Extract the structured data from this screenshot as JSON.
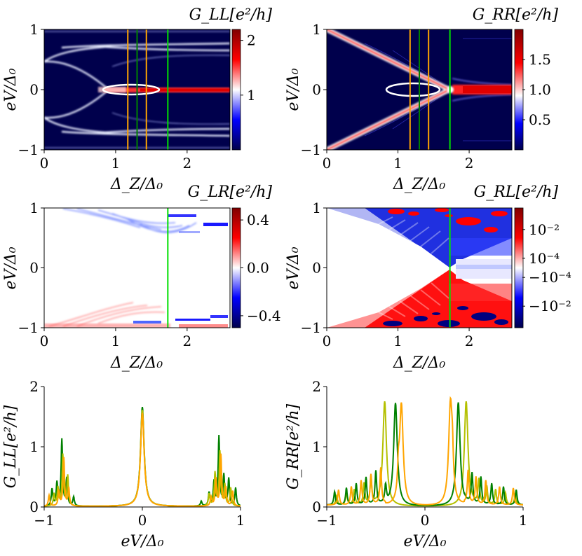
{
  "colors": {
    "seismic_dark_blue": "#00004c",
    "seismic_blue": "#0000ff",
    "seismic_white": "#ffffff",
    "seismic_red": "#ff0000",
    "seismic_dark_red": "#800000",
    "orange": "#ffa500",
    "dark_green": "#008000",
    "yellow_green": "#b4c000",
    "bright_green": "#00e000",
    "ellipse": "#ffffff"
  },
  "chart_data": [
    {
      "id": "GLL_map",
      "type": "heatmap",
      "title": "G_LL[e²/h]",
      "xlabel": "Δ_Z/Δ₀",
      "ylabel": "eV/Δ₀",
      "xlim": [
        0,
        2.6
      ],
      "ylim": [
        -1,
        1
      ],
      "x_ticks": [
        "0",
        "1",
        "2"
      ],
      "y_ticks": [
        "−1",
        "0",
        "1"
      ],
      "colorbar": {
        "range": [
          0,
          2.2
        ],
        "ticks": [
          "1",
          "2"
        ],
        "tick_values": [
          1,
          2
        ],
        "scale": "linear",
        "colormap": "seismic"
      },
      "vertical_lines": [
        {
          "x": 1.17,
          "color": "orange"
        },
        {
          "x": 1.3,
          "color": "dark_green"
        },
        {
          "x": 1.43,
          "color": "orange"
        },
        {
          "x": 1.73,
          "color": "bright_green"
        }
      ],
      "ellipse": {
        "cx": 1.23,
        "cy": 0.0,
        "rx": 0.4,
        "ry": 0.08
      }
    },
    {
      "id": "GRR_map",
      "type": "heatmap",
      "title": "G_RR[e²/h]",
      "xlabel": "Δ_Z/Δ₀",
      "ylabel": "eV/Δ₀",
      "xlim": [
        0,
        2.6
      ],
      "ylim": [
        -1,
        1
      ],
      "x_ticks": [
        "0",
        "1",
        "2"
      ],
      "y_ticks": [
        "−1",
        "0",
        "1"
      ],
      "colorbar": {
        "range": [
          0,
          2.0
        ],
        "ticks": [
          "0.5",
          "1.0",
          "1.5"
        ],
        "tick_values": [
          0.5,
          1.0,
          1.5
        ],
        "scale": "linear",
        "colormap": "seismic"
      },
      "vertical_lines": [
        {
          "x": 1.17,
          "color": "orange"
        },
        {
          "x": 1.3,
          "color": "dark_green"
        },
        {
          "x": 1.43,
          "color": "orange"
        },
        {
          "x": 1.73,
          "color": "bright_green"
        }
      ],
      "ellipse": {
        "cx": 1.23,
        "cy": 0.0,
        "rx": 0.38,
        "ry": 0.1
      }
    },
    {
      "id": "GLR_map",
      "type": "heatmap",
      "title": "G_LR[e²/h]",
      "xlabel": "Δ_Z/Δ₀",
      "ylabel": "eV/Δ₀",
      "xlim": [
        0,
        2.6
      ],
      "ylim": [
        -1,
        1
      ],
      "x_ticks": [
        "0",
        "1",
        "2"
      ],
      "y_ticks": [
        "−1",
        "0",
        "1"
      ],
      "colorbar": {
        "range": [
          -0.5,
          0.5
        ],
        "ticks": [
          "0.4",
          "0.0",
          "−0.4"
        ],
        "tick_values": [
          0.4,
          0.0,
          -0.4
        ],
        "scale": "linear",
        "colormap": "seismic"
      },
      "vertical_lines": [
        {
          "x": 1.73,
          "color": "bright_green"
        }
      ]
    },
    {
      "id": "GRL_map",
      "type": "heatmap",
      "title": "G_RL[e²/h]",
      "xlabel": "Δ_Z/Δ₀",
      "ylabel": "eV/Δ₀",
      "xlim": [
        0,
        2.6
      ],
      "ylim": [
        -1,
        1
      ],
      "x_ticks": [
        "0",
        "1",
        "2"
      ],
      "y_ticks": [
        "−1",
        "0",
        "1"
      ],
      "colorbar": {
        "scale": "symlog",
        "colormap": "seismic",
        "ticks": [
          "10⁻²",
          "10⁻⁴",
          "−10⁻⁴",
          "−10⁻²"
        ],
        "tick_positions": [
          0.82,
          0.58,
          0.42,
          0.18
        ]
      },
      "vertical_lines": [
        {
          "x": 1.73,
          "color": "bright_green"
        }
      ]
    },
    {
      "id": "GLL_cuts",
      "type": "line",
      "xlabel": "eV/Δ₀",
      "ylabel": "G_LL[e²/h]",
      "xlim": [
        -1,
        1
      ],
      "ylim": [
        0,
        2
      ],
      "x_ticks": [
        "−1",
        "0",
        "1"
      ],
      "y_ticks": [
        "0",
        "1",
        "2"
      ],
      "series": [
        {
          "color": "dark_green",
          "peak_center": 0.0,
          "peak_height": 1.65,
          "side_peaks": [
            [
              -0.82,
              1.1
            ],
            [
              -0.87,
              0.38
            ],
            [
              -0.92,
              0.28
            ],
            [
              -0.77,
              0.45
            ],
            [
              -0.7,
              0.15
            ],
            [
              0.78,
              1.15
            ],
            [
              0.83,
              0.5
            ],
            [
              0.88,
              0.45
            ],
            [
              0.73,
              0.4
            ],
            [
              0.68,
              0.22
            ],
            [
              0.95,
              0.3
            ],
            [
              0.6,
              0.08
            ]
          ]
        },
        {
          "color": "yellow_green",
          "peak_center": 0.0,
          "peak_height": 1.6,
          "side_peaks": [
            [
              -0.81,
              0.85
            ],
            [
              -0.86,
              0.3
            ],
            [
              -0.76,
              0.5
            ],
            [
              -0.9,
              0.2
            ],
            [
              0.79,
              0.9
            ],
            [
              0.74,
              0.55
            ],
            [
              0.84,
              0.35
            ],
            [
              0.9,
              0.3
            ],
            [
              0.68,
              0.2
            ]
          ]
        },
        {
          "color": "orange",
          "peak_center": 0.0,
          "peak_height": 1.55,
          "side_peaks": [
            [
              -0.8,
              0.8
            ],
            [
              -0.75,
              0.3
            ],
            [
              -0.85,
              0.25
            ],
            [
              -0.95,
              0.18
            ],
            [
              0.8,
              0.85
            ],
            [
              0.75,
              0.45
            ],
            [
              0.85,
              0.3
            ],
            [
              0.92,
              0.25
            ],
            [
              0.7,
              0.15
            ]
          ]
        }
      ]
    },
    {
      "id": "GRR_cuts",
      "type": "line",
      "xlabel": "eV/Δ₀",
      "ylabel": "G_RR[e²/h]",
      "xlim": [
        -1,
        1
      ],
      "ylim": [
        0,
        2
      ],
      "x_ticks": [
        "−1",
        "0",
        "1"
      ],
      "y_ticks": [
        "0",
        "1",
        "2"
      ],
      "series": [
        {
          "color": "yellow_green",
          "peaks": [
            [
              -0.41,
              1.72
            ],
            [
              0.42,
              1.72
            ],
            [
              -0.55,
              0.45
            ],
            [
              -0.62,
              0.35
            ],
            [
              0.55,
              0.4
            ],
            [
              0.63,
              0.3
            ],
            [
              -0.72,
              0.25
            ],
            [
              0.72,
              0.25
            ],
            [
              -0.8,
              0.2
            ],
            [
              0.82,
              0.2
            ],
            [
              -0.9,
              0.15
            ],
            [
              0.92,
              0.18
            ]
          ]
        },
        {
          "color": "dark_green",
          "peaks": [
            [
              -0.3,
              1.71
            ],
            [
              0.34,
              1.72
            ],
            [
              -0.5,
              0.55
            ],
            [
              -0.6,
              0.45
            ],
            [
              0.48,
              0.5
            ],
            [
              0.57,
              0.45
            ],
            [
              -0.7,
              0.35
            ],
            [
              0.68,
              0.35
            ],
            [
              -0.8,
              0.28
            ],
            [
              0.8,
              0.3
            ],
            [
              -0.92,
              0.22
            ],
            [
              0.93,
              0.25
            ],
            [
              -0.4,
              0.3
            ]
          ]
        },
        {
          "color": "orange",
          "peaks": [
            [
              -0.24,
              1.68
            ],
            [
              0.26,
              1.7
            ],
            [
              -0.45,
              0.6
            ],
            [
              -0.55,
              0.5
            ],
            [
              0.44,
              0.55
            ],
            [
              0.52,
              0.45
            ],
            [
              -0.65,
              0.4
            ],
            [
              0.62,
              0.4
            ],
            [
              -0.75,
              0.3
            ],
            [
              0.76,
              0.3
            ],
            [
              -0.88,
              0.25
            ],
            [
              0.9,
              0.28
            ],
            [
              0.28,
              0.45
            ],
            [
              -0.27,
              0.4
            ]
          ]
        }
      ]
    }
  ]
}
